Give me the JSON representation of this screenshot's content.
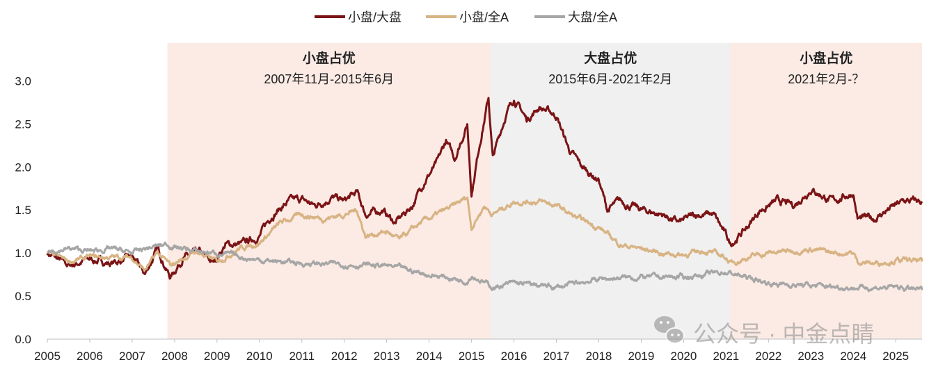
{
  "chart_data": {
    "type": "line",
    "xlabel": "",
    "ylabel": "",
    "xlim": [
      2005,
      2025.62
    ],
    "ylim": [
      0,
      3.44
    ],
    "yticks": [
      "0.0",
      "0.5",
      "1.0",
      "1.5",
      "2.0",
      "2.5",
      "3.0"
    ],
    "xticks": [
      "2005",
      "2006",
      "2007",
      "2008",
      "2009",
      "2010",
      "2011",
      "2012",
      "2013",
      "2014",
      "2015",
      "2016",
      "2017",
      "2018",
      "2019",
      "2020",
      "2021",
      "2022",
      "2023",
      "2024",
      "2025"
    ],
    "legend": {
      "placement": "top-center"
    },
    "regions": [
      {
        "start": 2007.83,
        "end": 2015.45,
        "title": "小盘占优",
        "subtitle": "2007年11月-2015年6月",
        "color": "#fbebe4"
      },
      {
        "start": 2015.45,
        "end": 2021.1,
        "title": "大盘占优",
        "subtitle": "2015年6月-2021年2月",
        "color": "#f0f0f0"
      },
      {
        "start": 2021.1,
        "end": 2025.62,
        "title": "小盘占优",
        "subtitle": "2021年2月-？",
        "color": "#fbebe4"
      }
    ],
    "series": [
      {
        "name": "小盘/大盘",
        "color": "#7b1416",
        "points": [
          [
            2005,
            1.0
          ],
          [
            2005.5,
            0.85
          ],
          [
            2006,
            0.93
          ],
          [
            2006.5,
            0.88
          ],
          [
            2007,
            0.95
          ],
          [
            2007.3,
            0.75
          ],
          [
            2007.6,
            1.05
          ],
          [
            2007.9,
            0.72
          ],
          [
            2008.2,
            0.95
          ],
          [
            2008.6,
            1.0
          ],
          [
            2008.9,
            0.88
          ],
          [
            2009.2,
            1.1
          ],
          [
            2009.6,
            1.1
          ],
          [
            2010,
            1.2
          ],
          [
            2010.3,
            1.45
          ],
          [
            2010.7,
            1.6
          ],
          [
            2011,
            1.62
          ],
          [
            2011.3,
            1.55
          ],
          [
            2011.7,
            1.65
          ],
          [
            2012,
            1.6
          ],
          [
            2012.3,
            1.7
          ],
          [
            2012.5,
            1.45
          ],
          [
            2012.9,
            1.5
          ],
          [
            2013.2,
            1.35
          ],
          [
            2013.6,
            1.55
          ],
          [
            2013.9,
            1.85
          ],
          [
            2014.2,
            2.05
          ],
          [
            2014.4,
            2.3
          ],
          [
            2014.6,
            2.1
          ],
          [
            2014.9,
            2.5
          ],
          [
            2015.0,
            1.7
          ],
          [
            2015.2,
            2.3
          ],
          [
            2015.4,
            2.8
          ],
          [
            2015.5,
            2.1
          ],
          [
            2015.8,
            2.6
          ],
          [
            2016,
            2.8
          ],
          [
            2016.3,
            2.55
          ],
          [
            2016.6,
            2.7
          ],
          [
            2017,
            2.6
          ],
          [
            2017.3,
            2.2
          ],
          [
            2017.6,
            2.0
          ],
          [
            2018,
            1.85
          ],
          [
            2018.2,
            1.5
          ],
          [
            2018.5,
            1.6
          ],
          [
            2019,
            1.5
          ],
          [
            2019.5,
            1.45
          ],
          [
            2019.9,
            1.35
          ],
          [
            2020.3,
            1.45
          ],
          [
            2020.7,
            1.45
          ],
          [
            2021,
            1.2
          ],
          [
            2021.1,
            1.1
          ],
          [
            2021.5,
            1.3
          ],
          [
            2021.8,
            1.5
          ],
          [
            2022.2,
            1.6
          ],
          [
            2022.6,
            1.55
          ],
          [
            2023,
            1.75
          ],
          [
            2023.5,
            1.6
          ],
          [
            2024,
            1.7
          ],
          [
            2024.1,
            1.4
          ],
          [
            2024.5,
            1.4
          ],
          [
            2024.8,
            1.5
          ],
          [
            2025.2,
            1.6
          ],
          [
            2025.62,
            1.6
          ]
        ]
      },
      {
        "name": "小盘/全A",
        "color": "#d8b383",
        "points": [
          [
            2005,
            1.0
          ],
          [
            2005.5,
            0.9
          ],
          [
            2006,
            0.95
          ],
          [
            2007,
            0.95
          ],
          [
            2007.3,
            0.8
          ],
          [
            2007.6,
            1.0
          ],
          [
            2007.9,
            0.85
          ],
          [
            2008.5,
            1.02
          ],
          [
            2009,
            0.9
          ],
          [
            2009.5,
            1.05
          ],
          [
            2010,
            1.12
          ],
          [
            2010.5,
            1.35
          ],
          [
            2011,
            1.45
          ],
          [
            2011.5,
            1.4
          ],
          [
            2012,
            1.45
          ],
          [
            2012.3,
            1.5
          ],
          [
            2012.5,
            1.2
          ],
          [
            2013,
            1.25
          ],
          [
            2013.3,
            1.15
          ],
          [
            2013.8,
            1.35
          ],
          [
            2014.2,
            1.45
          ],
          [
            2014.6,
            1.55
          ],
          [
            2014.9,
            1.65
          ],
          [
            2015.0,
            1.3
          ],
          [
            2015.3,
            1.55
          ],
          [
            2015.5,
            1.45
          ],
          [
            2016,
            1.6
          ],
          [
            2016.6,
            1.6
          ],
          [
            2017,
            1.55
          ],
          [
            2017.5,
            1.4
          ],
          [
            2018,
            1.3
          ],
          [
            2018.5,
            1.1
          ],
          [
            2019,
            1.05
          ],
          [
            2019.5,
            1.0
          ],
          [
            2020,
            0.98
          ],
          [
            2020.5,
            1.03
          ],
          [
            2021,
            0.95
          ],
          [
            2021.1,
            0.88
          ],
          [
            2021.5,
            0.95
          ],
          [
            2022,
            1.0
          ],
          [
            2023,
            1.05
          ],
          [
            2023.5,
            1.0
          ],
          [
            2024,
            1.0
          ],
          [
            2024.1,
            0.9
          ],
          [
            2024.5,
            0.88
          ],
          [
            2025,
            0.92
          ],
          [
            2025.62,
            0.9
          ]
        ]
      },
      {
        "name": "大盘/全A",
        "color": "#a6a6a6",
        "points": [
          [
            2005,
            1.02
          ],
          [
            2005.5,
            1.05
          ],
          [
            2006,
            1.02
          ],
          [
            2006.5,
            1.05
          ],
          [
            2007,
            1.0
          ],
          [
            2007.3,
            1.05
          ],
          [
            2007.8,
            1.1
          ],
          [
            2008.5,
            1.02
          ],
          [
            2009,
            1.0
          ],
          [
            2010,
            0.92
          ],
          [
            2011,
            0.88
          ],
          [
            2012,
            0.87
          ],
          [
            2013,
            0.85
          ],
          [
            2014,
            0.75
          ],
          [
            2014.9,
            0.68
          ],
          [
            2015.0,
            0.75
          ],
          [
            2015.5,
            0.6
          ],
          [
            2016,
            0.65
          ],
          [
            2017,
            0.6
          ],
          [
            2018,
            0.7
          ],
          [
            2019,
            0.72
          ],
          [
            2020,
            0.72
          ],
          [
            2021,
            0.78
          ],
          [
            2022,
            0.65
          ],
          [
            2023,
            0.62
          ],
          [
            2024,
            0.6
          ],
          [
            2025,
            0.6
          ],
          [
            2025.62,
            0.57
          ]
        ]
      }
    ]
  },
  "watermark": "公众号 · 中金点睛"
}
